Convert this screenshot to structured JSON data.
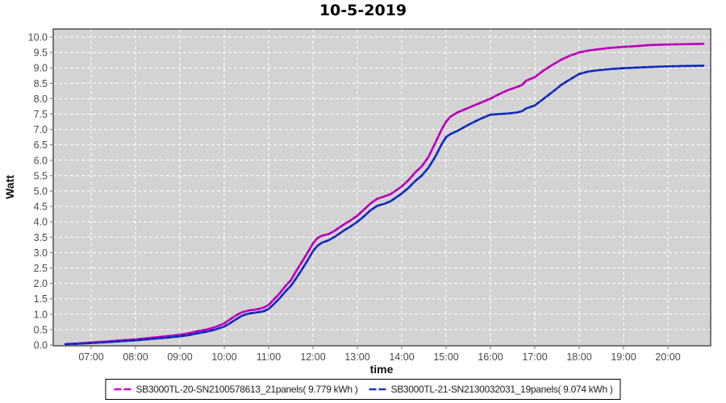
{
  "chart_data": {
    "type": "line",
    "title": "10-5-2019",
    "xlabel": "time",
    "ylabel": "Watt",
    "plot_bg": "#d3d3d3",
    "grid_color": "#ffffff",
    "grid_style": "dashed",
    "ylim": [
      0,
      10.25
    ],
    "xlim_hours": [
      6.15,
      20.95
    ],
    "y_tick_step": 0.5,
    "y_ticks": [
      "0.0",
      "0.5",
      "1.0",
      "1.5",
      "2.0",
      "2.5",
      "3.0",
      "3.5",
      "4.0",
      "4.5",
      "5.0",
      "5.5",
      "6.0",
      "6.5",
      "7.0",
      "7.5",
      "8.0",
      "8.5",
      "9.0",
      "9.5",
      "10.0"
    ],
    "x_ticks": [
      {
        "hour": 7,
        "label": "07:00"
      },
      {
        "hour": 8,
        "label": "08:00"
      },
      {
        "hour": 9,
        "label": "09:00"
      },
      {
        "hour": 10,
        "label": "10:00"
      },
      {
        "hour": 11,
        "label": "11:00"
      },
      {
        "hour": 12,
        "label": "12:00"
      },
      {
        "hour": 13,
        "label": "13:00"
      },
      {
        "hour": 14,
        "label": "14:00"
      },
      {
        "hour": 15,
        "label": "15:00"
      },
      {
        "hour": 16,
        "label": "16:00"
      },
      {
        "hour": 17,
        "label": "17:00"
      },
      {
        "hour": 18,
        "label": "18:00"
      },
      {
        "hour": 19,
        "label": "19:00"
      },
      {
        "hour": 20,
        "label": "20:00"
      }
    ],
    "series": [
      {
        "name": "SB3000TL-20-SN2100578613_21panels",
        "legend_label": "SB3000TL-20-SN2100578613_21panels( 9.779 kWh )",
        "total_kwh": 9.779,
        "color": "#cc00cc",
        "dash_color": "#8d008d",
        "points": [
          [
            6.42,
            0.03
          ],
          [
            6.7,
            0.05
          ],
          [
            7.0,
            0.08
          ],
          [
            7.33,
            0.11
          ],
          [
            7.67,
            0.15
          ],
          [
            8.0,
            0.18
          ],
          [
            8.33,
            0.23
          ],
          [
            8.67,
            0.28
          ],
          [
            9.0,
            0.33
          ],
          [
            9.2,
            0.38
          ],
          [
            9.4,
            0.45
          ],
          [
            9.6,
            0.5
          ],
          [
            9.8,
            0.58
          ],
          [
            10.0,
            0.7
          ],
          [
            10.1,
            0.8
          ],
          [
            10.25,
            0.95
          ],
          [
            10.4,
            1.06
          ],
          [
            10.55,
            1.12
          ],
          [
            10.75,
            1.16
          ],
          [
            10.9,
            1.22
          ],
          [
            11.0,
            1.3
          ],
          [
            11.1,
            1.45
          ],
          [
            11.25,
            1.68
          ],
          [
            11.4,
            1.95
          ],
          [
            11.5,
            2.1
          ],
          [
            11.6,
            2.35
          ],
          [
            11.75,
            2.7
          ],
          [
            11.9,
            3.05
          ],
          [
            12.0,
            3.3
          ],
          [
            12.1,
            3.47
          ],
          [
            12.2,
            3.55
          ],
          [
            12.35,
            3.6
          ],
          [
            12.5,
            3.72
          ],
          [
            12.7,
            3.92
          ],
          [
            12.85,
            4.05
          ],
          [
            13.0,
            4.2
          ],
          [
            13.15,
            4.4
          ],
          [
            13.3,
            4.6
          ],
          [
            13.45,
            4.75
          ],
          [
            13.6,
            4.82
          ],
          [
            13.75,
            4.9
          ],
          [
            14.0,
            5.15
          ],
          [
            14.15,
            5.35
          ],
          [
            14.3,
            5.6
          ],
          [
            14.45,
            5.8
          ],
          [
            14.6,
            6.1
          ],
          [
            14.75,
            6.55
          ],
          [
            14.9,
            7.0
          ],
          [
            15.0,
            7.25
          ],
          [
            15.1,
            7.42
          ],
          [
            15.25,
            7.55
          ],
          [
            15.5,
            7.7
          ],
          [
            15.75,
            7.85
          ],
          [
            16.0,
            8.0
          ],
          [
            16.2,
            8.15
          ],
          [
            16.4,
            8.28
          ],
          [
            16.6,
            8.38
          ],
          [
            16.72,
            8.45
          ],
          [
            16.8,
            8.58
          ],
          [
            17.0,
            8.7
          ],
          [
            17.2,
            8.92
          ],
          [
            17.4,
            9.1
          ],
          [
            17.6,
            9.27
          ],
          [
            17.8,
            9.4
          ],
          [
            18.0,
            9.5
          ],
          [
            18.2,
            9.56
          ],
          [
            18.4,
            9.6
          ],
          [
            18.7,
            9.65
          ],
          [
            19.0,
            9.68
          ],
          [
            19.3,
            9.71
          ],
          [
            19.6,
            9.74
          ],
          [
            20.0,
            9.76
          ],
          [
            20.4,
            9.77
          ],
          [
            20.8,
            9.78
          ]
        ]
      },
      {
        "name": "SB3000TL-21-SN2130032031_19panels",
        "legend_label": "SB3000TL-21-SN2130032031_19panels( 9.074 kWh )",
        "total_kwh": 9.074,
        "color": "#1c35cc",
        "dash_color": "#001f99",
        "points": [
          [
            6.42,
            0.02
          ],
          [
            6.7,
            0.04
          ],
          [
            7.0,
            0.06
          ],
          [
            7.33,
            0.09
          ],
          [
            7.67,
            0.12
          ],
          [
            8.0,
            0.15
          ],
          [
            8.33,
            0.19
          ],
          [
            8.67,
            0.23
          ],
          [
            9.0,
            0.28
          ],
          [
            9.2,
            0.32
          ],
          [
            9.4,
            0.38
          ],
          [
            9.6,
            0.43
          ],
          [
            9.8,
            0.5
          ],
          [
            10.0,
            0.6
          ],
          [
            10.1,
            0.68
          ],
          [
            10.25,
            0.82
          ],
          [
            10.4,
            0.95
          ],
          [
            10.55,
            1.02
          ],
          [
            10.75,
            1.06
          ],
          [
            10.9,
            1.1
          ],
          [
            11.0,
            1.17
          ],
          [
            11.1,
            1.3
          ],
          [
            11.25,
            1.52
          ],
          [
            11.4,
            1.77
          ],
          [
            11.5,
            1.92
          ],
          [
            11.6,
            2.12
          ],
          [
            11.75,
            2.45
          ],
          [
            11.9,
            2.8
          ],
          [
            12.0,
            3.05
          ],
          [
            12.1,
            3.22
          ],
          [
            12.2,
            3.32
          ],
          [
            12.35,
            3.4
          ],
          [
            12.5,
            3.52
          ],
          [
            12.7,
            3.72
          ],
          [
            12.85,
            3.85
          ],
          [
            13.0,
            4.0
          ],
          [
            13.15,
            4.18
          ],
          [
            13.3,
            4.38
          ],
          [
            13.45,
            4.52
          ],
          [
            13.6,
            4.58
          ],
          [
            13.75,
            4.67
          ],
          [
            14.0,
            4.92
          ],
          [
            14.15,
            5.1
          ],
          [
            14.3,
            5.32
          ],
          [
            14.45,
            5.5
          ],
          [
            14.6,
            5.75
          ],
          [
            14.75,
            6.1
          ],
          [
            14.9,
            6.52
          ],
          [
            15.0,
            6.75
          ],
          [
            15.1,
            6.85
          ],
          [
            15.25,
            6.95
          ],
          [
            15.5,
            7.15
          ],
          [
            15.75,
            7.33
          ],
          [
            16.0,
            7.48
          ],
          [
            16.2,
            7.5
          ],
          [
            16.4,
            7.52
          ],
          [
            16.6,
            7.55
          ],
          [
            16.72,
            7.6
          ],
          [
            16.8,
            7.68
          ],
          [
            17.0,
            7.78
          ],
          [
            17.2,
            8.0
          ],
          [
            17.4,
            8.22
          ],
          [
            17.6,
            8.45
          ],
          [
            17.8,
            8.63
          ],
          [
            18.0,
            8.8
          ],
          [
            18.2,
            8.88
          ],
          [
            18.4,
            8.92
          ],
          [
            18.7,
            8.96
          ],
          [
            19.0,
            8.99
          ],
          [
            19.3,
            9.01
          ],
          [
            19.6,
            9.03
          ],
          [
            20.0,
            9.05
          ],
          [
            20.4,
            9.06
          ],
          [
            20.8,
            9.07
          ]
        ]
      }
    ]
  }
}
